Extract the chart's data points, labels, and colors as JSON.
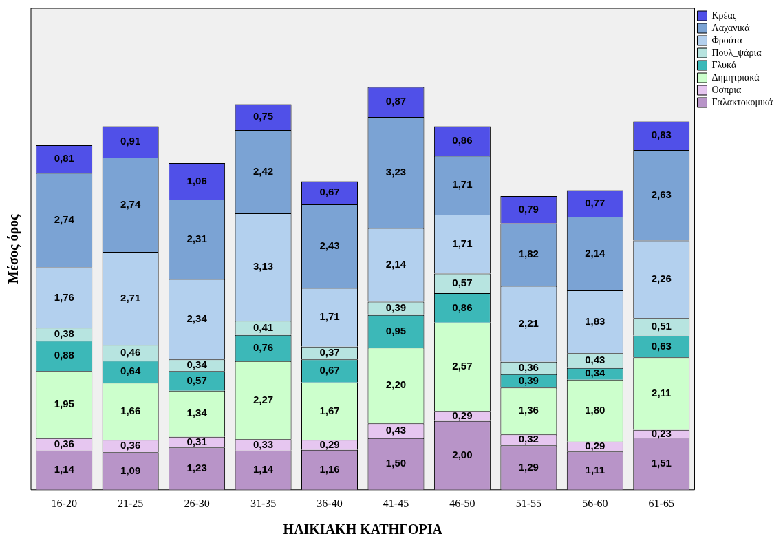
{
  "chart_data": {
    "type": "bar",
    "stacked": true,
    "xlabel": "ΗΛΙΚΙΑΚΗ ΚΑΤΗΓΟΡΙΑ",
    "ylabel": "Μέσος όρος",
    "legend": "top right",
    "grid": false,
    "tick_labels": "x",
    "categories": [
      "16-20",
      "21-25",
      "26-30",
      "31-35",
      "36-40",
      "41-45",
      "46-50",
      "51-55",
      "56-60",
      "61-65"
    ],
    "series": [
      {
        "name": "Γαλακτοκομικά",
        "color": "#b894c8",
        "values": [
          1.14,
          1.09,
          1.23,
          1.14,
          1.16,
          1.5,
          2.0,
          1.29,
          1.11,
          1.51
        ],
        "value_labels": [
          "1,14",
          "1,09",
          "1,23",
          "1,14",
          "1,16",
          "1,50",
          "2,00",
          "1,29",
          "1,11",
          "1,51"
        ]
      },
      {
        "name": "Οσπρια",
        "color": "#e6c6f0",
        "values": [
          0.36,
          0.36,
          0.31,
          0.33,
          0.29,
          0.43,
          0.29,
          0.32,
          0.29,
          0.23
        ],
        "value_labels": [
          "0,36",
          "0,36",
          "0,31",
          "0,33",
          "0,29",
          "0,43",
          "0,29",
          "0,32",
          "0,29",
          "0,23"
        ]
      },
      {
        "name": "Δημητριακά",
        "color": "#ccffcc",
        "values": [
          1.95,
          1.66,
          1.34,
          2.27,
          1.67,
          2.2,
          2.57,
          1.36,
          1.8,
          2.11
        ],
        "value_labels": [
          "1,95",
          "1,66",
          "1,34",
          "2,27",
          "1,67",
          "2,20",
          "2,57",
          "1,36",
          "1,80",
          "2,11"
        ]
      },
      {
        "name": "Γλυκά",
        "color": "#3cb8b8",
        "values": [
          0.88,
          0.64,
          0.57,
          0.76,
          0.67,
          0.95,
          0.86,
          0.39,
          0.34,
          0.63
        ],
        "value_labels": [
          "0,88",
          "0,64",
          "0,57",
          "0,76",
          "0,67",
          "0,95",
          "0,86",
          "0,39",
          "0,34",
          "0,63"
        ]
      },
      {
        "name": "Πουλ_ψάρια",
        "color": "#b7e4e0",
        "values": [
          0.38,
          0.46,
          0.34,
          0.41,
          0.37,
          0.39,
          0.57,
          0.36,
          0.43,
          0.51
        ],
        "value_labels": [
          "0,38",
          "0,46",
          "0,34",
          "0,41",
          "0,37",
          "0,39",
          "0,57",
          "0,36",
          "0,43",
          "0,51"
        ]
      },
      {
        "name": "Φρούτα",
        "color": "#b3d0ee",
        "values": [
          1.76,
          2.71,
          2.34,
          3.13,
          1.71,
          2.14,
          1.71,
          2.21,
          1.83,
          2.26
        ],
        "value_labels": [
          "1,76",
          "2,71",
          "2,34",
          "3,13",
          "1,71",
          "2,14",
          "1,71",
          "2,21",
          "1,83",
          "2,26"
        ]
      },
      {
        "name": "Λαχανικά",
        "color": "#7ba3d4",
        "values": [
          2.74,
          2.74,
          2.31,
          2.42,
          2.43,
          3.23,
          1.71,
          1.82,
          2.14,
          2.63
        ],
        "value_labels": [
          "2,74",
          "2,74",
          "2,31",
          "2,42",
          "2,43",
          "3,23",
          "1,71",
          "1,82",
          "2,14",
          "2,63"
        ]
      },
      {
        "name": "Κρέας",
        "color": "#5050e8",
        "values": [
          0.81,
          0.91,
          1.06,
          0.75,
          0.67,
          0.87,
          0.86,
          0.79,
          0.77,
          0.83
        ],
        "value_labels": [
          "0,81",
          "0,91",
          "1,06",
          "0,75",
          "0,67",
          "0,87",
          "0,86",
          "0,79",
          "0,77",
          "0,83"
        ]
      }
    ]
  }
}
